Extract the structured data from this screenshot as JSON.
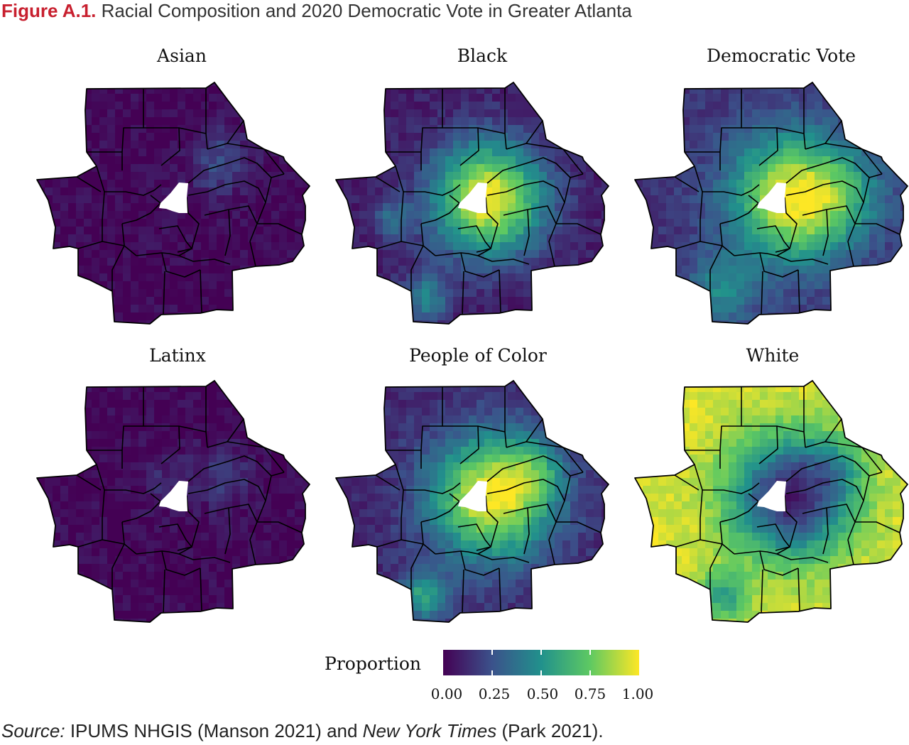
{
  "figure": {
    "label": "Figure A.1.",
    "title": "Racial Composition and 2020 Democratic Vote in Greater Atlanta"
  },
  "panels": [
    {
      "id": "asian",
      "title": "Asian",
      "scheme": "asian"
    },
    {
      "id": "black",
      "title": "Black",
      "scheme": "black"
    },
    {
      "id": "democratic",
      "title": "Democratic Vote",
      "scheme": "dem"
    },
    {
      "id": "latinx",
      "title": "Latinx",
      "scheme": "latinx"
    },
    {
      "id": "poc",
      "title": "People of Color",
      "scheme": "poc"
    },
    {
      "id": "white",
      "title": "White",
      "scheme": "white"
    }
  ],
  "legend": {
    "title": "Proportion",
    "ticks": [
      "0.00",
      "0.25",
      "0.50",
      "0.75",
      "1.00"
    ],
    "colors": [
      "#440154",
      "#3b528b",
      "#21918c",
      "#5ec962",
      "#fde725"
    ]
  },
  "source": {
    "prefix": "Source:",
    "part1": " IPUMS NHGIS (Manson 2021) and ",
    "publication": "New York Times",
    "part2": " (Park 2021)."
  }
}
